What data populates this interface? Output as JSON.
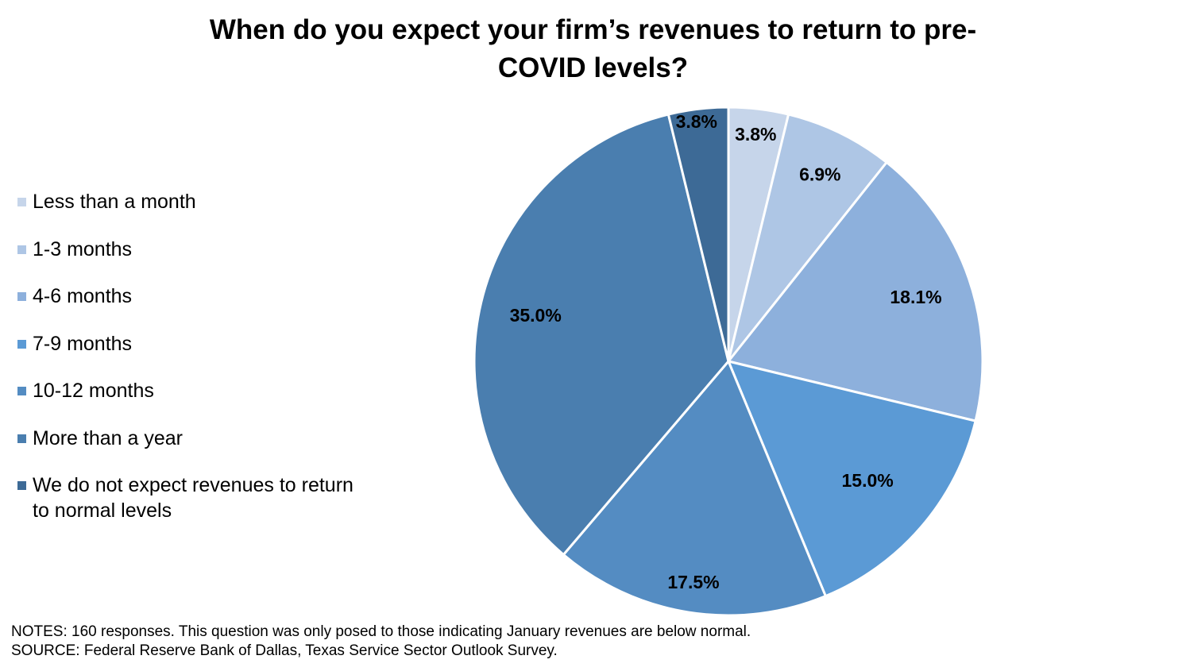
{
  "title_lines": [
    "When do you expect your firm’s revenues to return to pre-",
    "COVID levels?"
  ],
  "chart_data": {
    "type": "pie",
    "title": "When do you expect your firm’s revenues to return to pre-COVID levels?",
    "legend_position": "left",
    "slices": [
      {
        "name": "Less than a month",
        "value": 3.8,
        "label": "3.8%",
        "color": "#c6d5ea"
      },
      {
        "name": "1-3 months",
        "value": 6.9,
        "label": "6.9%",
        "color": "#aec6e5"
      },
      {
        "name": "4-6 months",
        "value": 18.1,
        "label": "18.1%",
        "color": "#8db0dc"
      },
      {
        "name": "7-9 months",
        "value": 15.0,
        "label": "15.0%",
        "color": "#5b9ad5"
      },
      {
        "name": "10-12 months",
        "value": 17.5,
        "label": "17.5%",
        "color": "#548cc2"
      },
      {
        "name": "More than a year",
        "value": 35.0,
        "label": "35.0%",
        "color": "#4a7eaf"
      },
      {
        "name": "We do not expect revenues to return to normal levels",
        "value": 3.8,
        "label": "3.8%",
        "color": "#3d6a96"
      }
    ]
  },
  "legend": [
    {
      "lines": [
        "Less than a month"
      ]
    },
    {
      "lines": [
        "1-3 months"
      ]
    },
    {
      "lines": [
        "4-6 months"
      ]
    },
    {
      "lines": [
        "7-9 months"
      ]
    },
    {
      "lines": [
        "10-12 months"
      ]
    },
    {
      "lines": [
        "More than a year"
      ]
    },
    {
      "lines": [
        "We do not expect revenues to return",
        "to normal levels"
      ]
    }
  ],
  "notes": "NOTES: 160 responses. This question was only posed to those indicating January revenues are below normal.",
  "source": "SOURCE: Federal Reserve Bank of Dallas, Texas Service Sector Outlook Survey."
}
